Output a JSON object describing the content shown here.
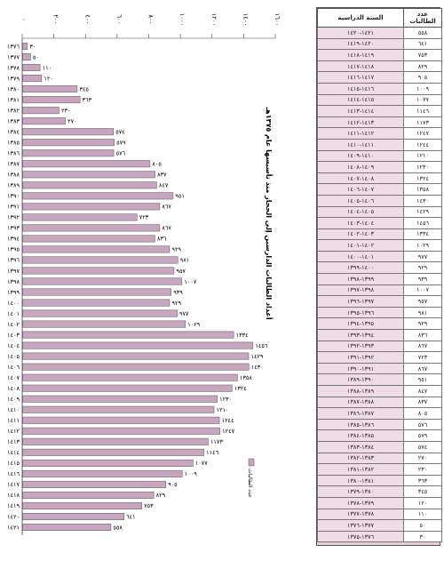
{
  "table": {
    "headers": {
      "year": "السنة الدراسية",
      "count": "عدد الطالبات"
    },
    "rows": [
      {
        "year": "١٤٢١-١٤٢٠",
        "count": "٥٥٨"
      },
      {
        "year": "١٤٢٠-١٤١٩",
        "count": "٦٤١"
      },
      {
        "year": "١٤١٩-١٤١٨",
        "count": "٧٥٣"
      },
      {
        "year": "١٤١٨-١٤١٧",
        "count": "٨٢٩"
      },
      {
        "year": "١٤١٧-١٤١٦",
        "count": "٩٠٥"
      },
      {
        "year": "١٤١٦-١٤١٥",
        "count": "١٠٠٩"
      },
      {
        "year": "١٤١٥-١٤١٤",
        "count": "١٠٧٧"
      },
      {
        "year": "١٤١٤-١٤١٣",
        "count": "١١٤٦"
      },
      {
        "year": "١٤١٣-١٤١٢",
        "count": "١١٧٣"
      },
      {
        "year": "١٤١٢-١٤١١",
        "count": "١٢٤٧"
      },
      {
        "year": "١٤١١-١٤١٠",
        "count": "١٢٤٤"
      },
      {
        "year": "١٤١٠-١٤٠٩",
        "count": "١٢١٠"
      },
      {
        "year": "١٤٠٩-١٤٠٨",
        "count": "١٢٣٠"
      },
      {
        "year": "١٤٠٨-١٤٠٧",
        "count": "١٣٢٤"
      },
      {
        "year": "١٤٠٧-١٤٠٦",
        "count": "١٣٥٨"
      },
      {
        "year": "١٤٠٦-١٤٠٥",
        "count": "١٤٣٠"
      },
      {
        "year": "١٤٠٥-١٤٠٤",
        "count": "١٤٢٩"
      },
      {
        "year": "١٤٠٤-١٤٠٣",
        "count": "١٤٥٦"
      },
      {
        "year": "١٤٠٣-١٤٠٢",
        "count": "١٣٣٤"
      },
      {
        "year": "١٤٠٢-١٤٠١",
        "count": "١٠٢٩"
      },
      {
        "year": "١٤٠١-١٤٠٠",
        "count": "٩٧٧"
      },
      {
        "year": "١٤٠٠-١٣٩٩",
        "count": "٩٢٩"
      },
      {
        "year": "١٣٩٩-١٣٩٨",
        "count": "٩٣٩"
      },
      {
        "year": "١٣٩٨-١٣٩٧",
        "count": "١٠٠٧"
      },
      {
        "year": "١٣٩٧-١٣٩٦",
        "count": "٩٥٧"
      },
      {
        "year": "١٣٩٦-١٣٩٥",
        "count": "٩٨١"
      },
      {
        "year": "١٣٩٥-١٣٩٤",
        "count": "٩٢٩"
      },
      {
        "year": "١٣٩٤-١٣٩٣",
        "count": "٨٣٦"
      },
      {
        "year": "١٣٩٣-١٣٩٢",
        "count": "٨٦٧"
      },
      {
        "year": "١٣٩٢-١٣٩١",
        "count": "٧٢٣"
      },
      {
        "year": "١٣٩١-١٣٩٠",
        "count": "٨٦٧"
      },
      {
        "year": "١٣٩٠-١٣٨٩",
        "count": "٩٥١"
      },
      {
        "year": "١٣٨٩-١٣٨٨",
        "count": "٨٤٧"
      },
      {
        "year": "١٣٨٨-١٣٨٧",
        "count": "٨٣٧"
      },
      {
        "year": "١٣٨٧-١٣٨٦",
        "count": "٨٠٥"
      },
      {
        "year": "١٣٨٦-١٣٨٥",
        "count": "٥٧٦"
      },
      {
        "year": "١٣٨٥-١٣٨٤",
        "count": "٥٧٩"
      },
      {
        "year": "١٣٨٤-١٣٨٣",
        "count": "٥٧٤"
      },
      {
        "year": "١٣٨٣-١٣٨٢",
        "count": "٢٧٠"
      },
      {
        "year": "١٣٨٢-١٣٨١",
        "count": "٢٣٠"
      },
      {
        "year": "١٣٨١-١٣٨٠",
        "count": "٣٦٣"
      },
      {
        "year": "١٣٨٠-١٣٧٩",
        "count": "٣٤٥"
      },
      {
        "year": "١٣٧٩-١٣٧٨",
        "count": "١٢٠"
      },
      {
        "year": "١٣٧٨-١٣٧٧",
        "count": "١١٠"
      },
      {
        "year": "١٣٧٧-١٣٧٦",
        "count": "٥٠"
      },
      {
        "year": "١٣٧٦-١٣٧٥",
        "count": "٣٠"
      }
    ]
  },
  "chart_data": {
    "type": "bar",
    "orientation": "horizontal",
    "title": "أعداد الطالبات الدارسين إلى الحجاز منذ تأسيسها عام ١٣٧٥هـ",
    "legend": {
      "label": "عدد الطالبات",
      "placement": "bottom-right"
    },
    "axis_ticks": [
      "٠",
      "٢٠٠",
      "٤٠٠",
      "٦٠٠",
      "٨٠٠",
      "١٠٠٠",
      "١٢٠٠",
      "١٤٠٠",
      "١٦٠٠"
    ],
    "xlim": [
      0,
      1600
    ],
    "grid": false,
    "bar_color": "#c9a6c0",
    "categories": [
      "١٣٧٦",
      "١٣٧٧",
      "١٣٧٨",
      "١٣٧٩",
      "١٣٨٠",
      "١٣٨١",
      "١٣٨٢",
      "١٣٨٣",
      "١٣٨٤",
      "١٣٨٥",
      "١٣٨٦",
      "١٣٨٧",
      "١٣٨٨",
      "١٣٨٩",
      "١٣٩٠",
      "١٣٩١",
      "١٣٩٢",
      "١٣٩٣",
      "١٣٩٤",
      "١٣٩٥",
      "١٣٩٦",
      "١٣٩٧",
      "١٣٩٨",
      "١٣٩٩",
      "١٤٠٠",
      "١٤٠١",
      "١٤٠٢",
      "١٤٠٣",
      "١٤٠٤",
      "١٤٠٥",
      "١٤٠٦",
      "١٤٠٧",
      "١٤٠٨",
      "١٤٠٩",
      "١٤١٠",
      "١٤١١",
      "١٤١٢",
      "١٤١٣",
      "١٤١٤",
      "١٤١٥",
      "١٤١٦",
      "١٤١٧",
      "١٤١٨",
      "١٤١٩",
      "١٤٢٠",
      "١٤٢١"
    ],
    "values": [
      30,
      50,
      110,
      120,
      345,
      363,
      230,
      270,
      574,
      579,
      576,
      805,
      837,
      847,
      951,
      867,
      723,
      867,
      836,
      929,
      981,
      957,
      1007,
      939,
      929,
      977,
      1029,
      1334,
      1456,
      1429,
      1430,
      1358,
      1324,
      1230,
      1210,
      1244,
      1247,
      1173,
      1146,
      1077,
      1009,
      905,
      829,
      753,
      641,
      558
    ],
    "value_labels": [
      "٣٠",
      "٥٠",
      "١١٠",
      "١٢٠",
      "٣٤٥",
      "٣٦٣",
      "٢٣٠",
      "٢٧٠",
      "٥٧٤",
      "٥٧٩",
      "٥٧٦",
      "٨٠٥",
      "٨٣٧",
      "٨٤٧",
      "٩٥١",
      "٨٦٧",
      "٧٢٣",
      "٨٦٧",
      "٨٣٦",
      "٩٢٩",
      "٩٨١",
      "٩٥٧",
      "١٠٠٧",
      "٩٣٩",
      "٩٢٩",
      "٩٧٧",
      "١٠٢٩",
      "١٣٣٤",
      "١٤٥٦",
      "١٤٢٩",
      "١٤٣٠",
      "١٣٥٨",
      "١٣٢٤",
      "١٢٣٠",
      "١٢١٠",
      "١٢٤٤",
      "١٢٤٧",
      "١١٧٣",
      "١١٤٦",
      "١٠٧٧",
      "١٠٠٩",
      "٩٠٥",
      "٨٢٩",
      "٧٥٣",
      "٦٤١",
      "٥٥٨"
    ]
  }
}
